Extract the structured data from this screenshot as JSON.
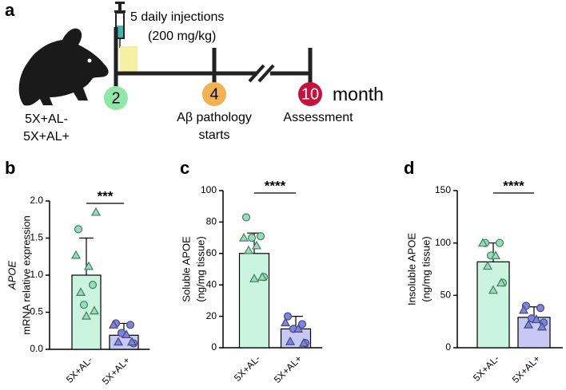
{
  "panel_labels": [
    "a",
    "b",
    "c",
    "d"
  ],
  "timeline": {
    "timepoints": [
      "2",
      "4",
      "10"
    ],
    "unit": "month",
    "injection": [
      "5 daily injections",
      "(200 mg/kg)"
    ],
    "pathology": [
      "Aβ pathology",
      "starts"
    ],
    "assessment": "Assessment",
    "groups": [
      "5X+AL-",
      "5X+AL+"
    ]
  },
  "chart_data": [
    {
      "type": "bar",
      "ylabel": [
        "APOE",
        "mRNA relative expression"
      ],
      "ylabel_italic": [
        true,
        false
      ],
      "categories": [
        "5X+AL-",
        "5X+AL+"
      ],
      "values": [
        1.0,
        0.19
      ],
      "errors": [
        0.5,
        0.16
      ],
      "colors": [
        "#c9f4df",
        "#c7c9f4"
      ],
      "point_colors": [
        "#8fe0b8",
        "#7f84e0"
      ],
      "points": [
        {
          "circles": [
            1.62,
            0.87,
            0.6
          ],
          "triangles": [
            1.85,
            1.27,
            1.12,
            0.77,
            0.52,
            0.45
          ]
        },
        {
          "circles": [
            0.35,
            0.33,
            0.22,
            0.08
          ],
          "triangles": [
            0.33,
            0.2,
            0.1,
            0.1
          ]
        }
      ],
      "ylim": [
        0,
        2.0
      ],
      "yticks": [
        {
          "value": 0,
          "label": "0.0"
        },
        0.5,
        {
          "value": 1,
          "label": "1.0"
        },
        1.5,
        {
          "value": 2,
          "label": "2.0"
        }
      ],
      "significance": "***"
    },
    {
      "type": "bar",
      "ylabel": [
        "Soluble APOE",
        "(ng/mg tissue)"
      ],
      "ylabel_italic": [
        false,
        false
      ],
      "categories": [
        "5X+AL-",
        "5X+AL+"
      ],
      "values": [
        60,
        12
      ],
      "errors": [
        13,
        8
      ],
      "colors": [
        "#c9f4df",
        "#c7c9f4"
      ],
      "point_colors": [
        "#8fe0b8",
        "#7f84e0"
      ],
      "points": [
        {
          "circles": [
            83,
            71,
            70,
            45
          ],
          "triangles": [
            70,
            65,
            62,
            45,
            44
          ]
        },
        {
          "circles": [
            20,
            15,
            12,
            3
          ],
          "triangles": [
            16,
            12,
            4,
            3
          ]
        }
      ],
      "ylim": [
        0,
        100
      ],
      "yticks": [
        0,
        20,
        40,
        60,
        80,
        100
      ],
      "significance": "****"
    },
    {
      "type": "bar",
      "ylabel": [
        "Insoluble APOE",
        "(ng/mg tissue)"
      ],
      "ylabel_italic": [
        false,
        false
      ],
      "categories": [
        "5X+AL-",
        "5X+AL+"
      ],
      "values": [
        82,
        29
      ],
      "errors": [
        18,
        10
      ],
      "colors": [
        "#c9f4df",
        "#c7c9f4"
      ],
      "point_colors": [
        "#8fe0b8",
        "#7f84e0"
      ],
      "points": [
        {
          "circles": [
            100,
            100,
            88,
            62
          ],
          "triangles": [
            100,
            88,
            78,
            62,
            55
          ]
        },
        {
          "circles": [
            40,
            38,
            28,
            24
          ],
          "triangles": [
            36,
            27,
            22,
            20
          ]
        }
      ],
      "ylim": [
        0,
        150
      ],
      "yticks": [
        0,
        50,
        100,
        150
      ],
      "significance": "****"
    }
  ]
}
